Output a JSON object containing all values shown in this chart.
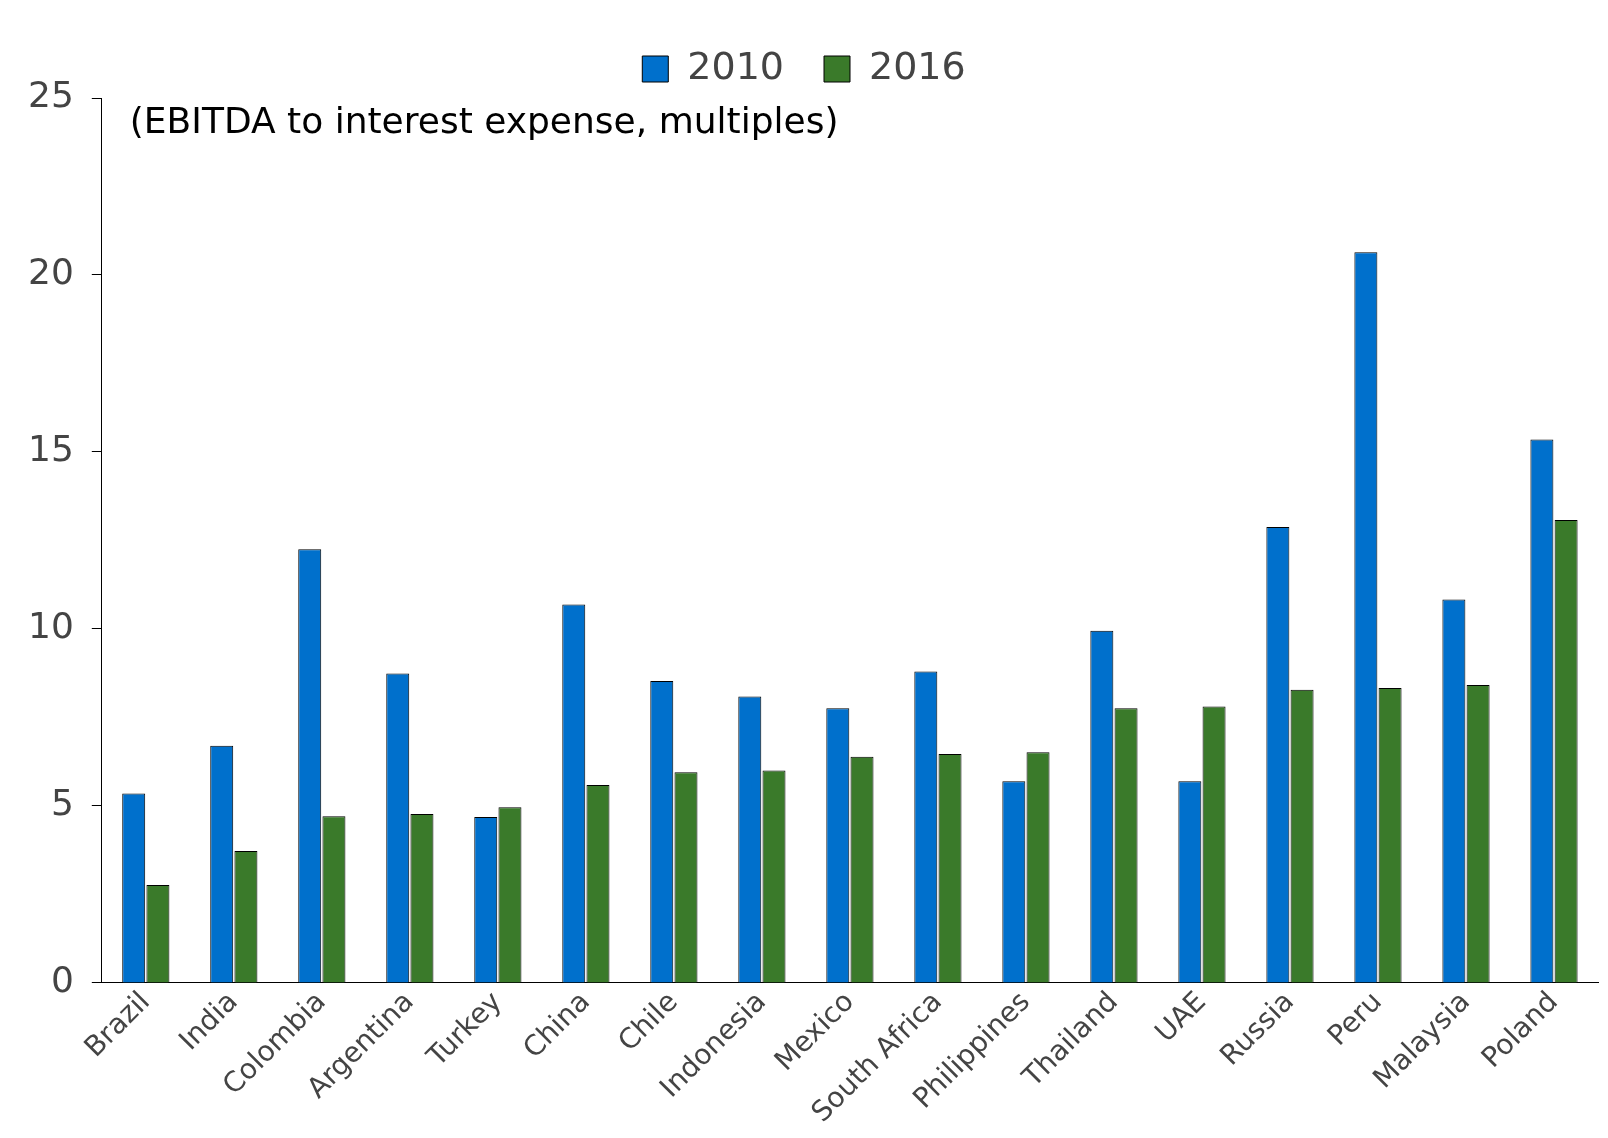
{
  "chart_data": {
    "type": "bar",
    "annotations": [
      "(EBITDA to interest expense, multiples)"
    ],
    "categories": [
      "Brazil",
      "India",
      "Colombia",
      "Argentina",
      "Turkey",
      "China",
      "Chile",
      "Indonesia",
      "Mexico",
      "South Africa",
      "Philippines",
      "Thailand",
      "UAE",
      "Russia",
      "Peru",
      "Malaysia",
      "Poland"
    ],
    "series": [
      {
        "name": "2010",
        "color": "#0070cc",
        "values": [
          5.35,
          6.7,
          12.25,
          8.74,
          4.69,
          10.69,
          8.53,
          8.09,
          7.76,
          8.8,
          5.7,
          9.95,
          5.7,
          12.88,
          20.64,
          10.83,
          15.35
        ]
      },
      {
        "name": "2016",
        "color": "#3a7a2a",
        "values": [
          2.77,
          3.73,
          4.71,
          4.77,
          4.96,
          5.59,
          5.95,
          6.0,
          6.39,
          6.47,
          6.52,
          7.76,
          7.81,
          8.28,
          8.33,
          8.42,
          13.08
        ]
      }
    ],
    "ylim": [
      0,
      25
    ],
    "yticks": [
      0,
      5,
      10,
      15,
      20,
      25
    ],
    "grid": false,
    "legend": "top"
  }
}
